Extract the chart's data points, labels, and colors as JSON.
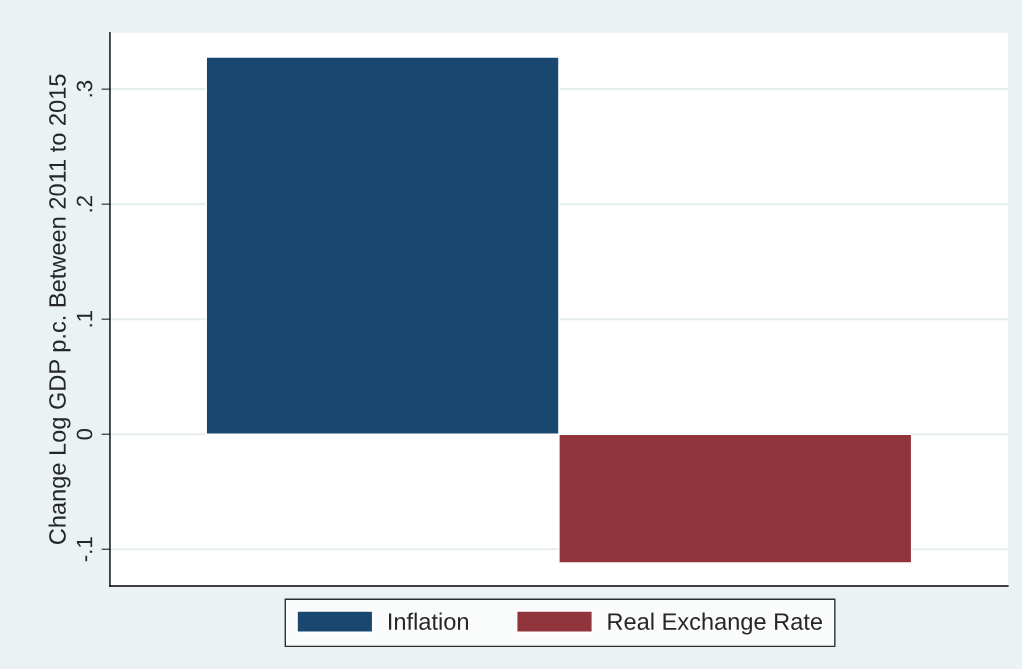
{
  "chart_data": {
    "type": "bar",
    "ylabel": "Change Log GDP p.c. Between 2011 to 2015",
    "categories": [
      null,
      null
    ],
    "series": [
      {
        "name": "Inflation",
        "color": "#1a476f",
        "values": [
          0.328,
          null
        ]
      },
      {
        "name": "Real Exchange Rate",
        "color": "#90353b",
        "values": [
          null,
          -0.112
        ]
      }
    ],
    "ylim": [
      -0.132,
      0.349
    ],
    "yticks": [
      {
        "value": -0.1,
        "label": "-.1"
      },
      0,
      {
        "value": 0.1,
        "label": ".1"
      },
      {
        "value": 0.2,
        "label": ".2"
      },
      {
        "value": 0.3,
        "label": ".3"
      }
    ],
    "grid": "y",
    "legend": "bottom",
    "tick_labels": "y"
  }
}
